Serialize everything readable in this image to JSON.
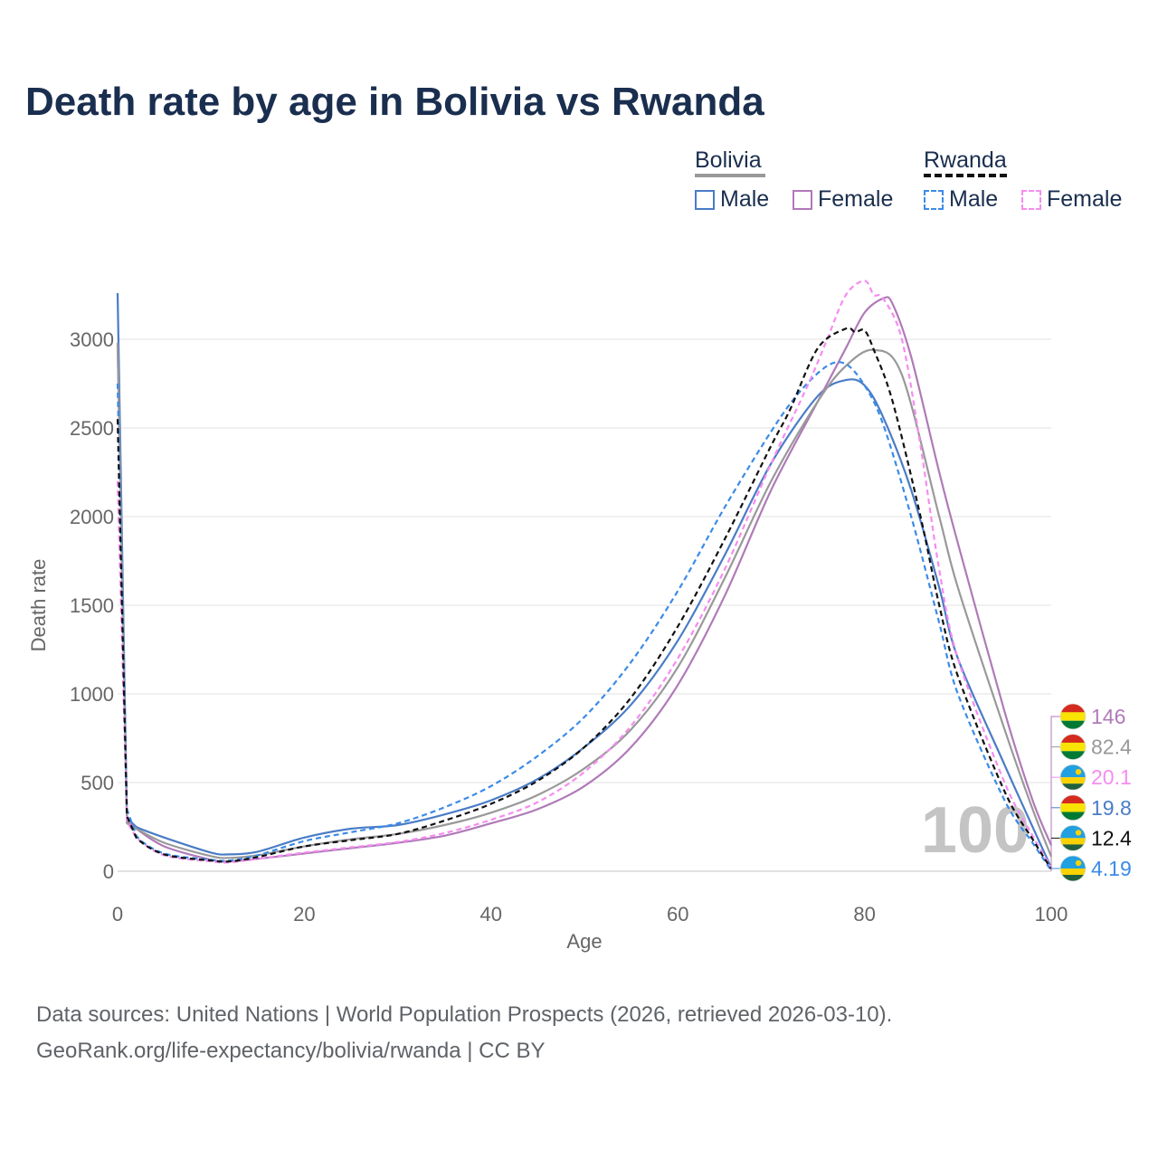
{
  "title": "Death rate by age in Bolivia vs Rwanda",
  "legend": {
    "groups": [
      {
        "name": "Bolivia",
        "line_style": "solid",
        "line_color": "#999999",
        "items": [
          {
            "label": "Male",
            "color": "#4a7cc6",
            "style": "solid"
          },
          {
            "label": "Female",
            "color": "#b07ab8",
            "style": "solid"
          }
        ]
      },
      {
        "name": "Rwanda",
        "line_style": "dashed",
        "line_color": "#111111",
        "items": [
          {
            "label": "Male",
            "color": "#3b8be8",
            "style": "dashed"
          },
          {
            "label": "Female",
            "color": "#f58cf0",
            "style": "dashed"
          }
        ]
      }
    ]
  },
  "footer": {
    "line1": "Data sources: United Nations | World Population Prospects (2026, retrieved 2026-03-10).",
    "line2": "GeoRank.org/life-expectancy/bolivia/rwanda | CC BY"
  },
  "chart_data": {
    "type": "line",
    "xlabel": "Age",
    "ylabel": "Death rate",
    "xlim": [
      0,
      100
    ],
    "ylim": [
      0,
      3000
    ],
    "x_ticks": [
      0,
      20,
      40,
      60,
      80,
      100
    ],
    "y_ticks": [
      0,
      500,
      1000,
      1500,
      2000,
      2500,
      3000
    ],
    "grid": true,
    "watermark": "100",
    "series": [
      {
        "name": "Bolivia Male",
        "color": "#4a7cc6",
        "dash": false,
        "x": [
          0,
          1,
          2,
          5,
          10,
          12,
          15,
          20,
          25,
          30,
          35,
          40,
          45,
          50,
          55,
          60,
          65,
          70,
          75,
          78,
          80,
          82,
          85,
          88,
          90,
          95,
          98,
          100
        ],
        "y": [
          3260,
          300,
          250,
          190,
          105,
          95,
          110,
          190,
          240,
          260,
          320,
          400,
          520,
          700,
          940,
          1300,
          1780,
          2300,
          2680,
          2770,
          2740,
          2560,
          2150,
          1600,
          1200,
          600,
          250,
          19.8
        ]
      },
      {
        "name": "Bolivia Female",
        "color": "#b07ab8",
        "dash": false,
        "x": [
          0,
          1,
          2,
          5,
          10,
          12,
          15,
          20,
          25,
          30,
          35,
          40,
          45,
          50,
          55,
          60,
          65,
          70,
          75,
          78,
          80,
          82,
          83,
          85,
          88,
          90,
          95,
          98,
          100
        ],
        "y": [
          2970,
          280,
          240,
          140,
          65,
          55,
          70,
          100,
          130,
          160,
          200,
          270,
          350,
          480,
          700,
          1050,
          1550,
          2150,
          2650,
          2950,
          3150,
          3230,
          3200,
          2900,
          2250,
          1850,
          900,
          400,
          146
        ]
      },
      {
        "name": "Bolivia Total",
        "color": "#999999",
        "dash": false,
        "x": [
          0,
          1,
          2,
          5,
          10,
          12,
          15,
          20,
          25,
          30,
          35,
          40,
          45,
          50,
          55,
          60,
          65,
          70,
          75,
          78,
          81,
          84,
          88,
          90,
          95,
          98,
          100
        ],
        "y": [
          2980,
          270,
          240,
          160,
          85,
          75,
          90,
          140,
          180,
          210,
          260,
          330,
          430,
          580,
          800,
          1150,
          1650,
          2200,
          2650,
          2850,
          2940,
          2800,
          2000,
          1600,
          800,
          350,
          82.4
        ]
      },
      {
        "name": "Rwanda Male",
        "color": "#3b8be8",
        "dash": true,
        "x": [
          0,
          1,
          2,
          5,
          10,
          12,
          15,
          20,
          25,
          30,
          35,
          40,
          45,
          50,
          55,
          60,
          65,
          70,
          73,
          76,
          78,
          80,
          82,
          85,
          88,
          90,
          95,
          98,
          100
        ],
        "y": [
          2750,
          350,
          200,
          100,
          65,
          60,
          90,
          170,
          220,
          270,
          360,
          480,
          650,
          870,
          1180,
          1580,
          2050,
          2480,
          2700,
          2850,
          2860,
          2740,
          2520,
          2000,
          1400,
          1000,
          400,
          160,
          4.19
        ]
      },
      {
        "name": "Rwanda Female",
        "color": "#f58cf0",
        "dash": true,
        "x": [
          0,
          1,
          2,
          5,
          10,
          12,
          15,
          20,
          25,
          30,
          35,
          40,
          45,
          50,
          55,
          60,
          65,
          70,
          74,
          76,
          78,
          80,
          81,
          82,
          84,
          86,
          88,
          90,
          95,
          98,
          100
        ],
        "y": [
          2200,
          280,
          190,
          90,
          55,
          50,
          70,
          105,
          135,
          165,
          215,
          290,
          390,
          560,
          820,
          1200,
          1700,
          2300,
          2750,
          3000,
          3250,
          3330,
          3250,
          3230,
          3000,
          2400,
          1700,
          1200,
          500,
          200,
          20.1
        ]
      },
      {
        "name": "Rwanda Total",
        "color": "#111111",
        "dash": true,
        "x": [
          0,
          1,
          2,
          5,
          10,
          12,
          15,
          20,
          25,
          30,
          35,
          40,
          45,
          50,
          55,
          60,
          65,
          70,
          72,
          75,
          78,
          79,
          80,
          81,
          83,
          86,
          88,
          90,
          95,
          98,
          100
        ],
        "y": [
          2550,
          310,
          190,
          95,
          60,
          55,
          80,
          140,
          175,
          210,
          285,
          380,
          510,
          700,
          980,
          1380,
          1870,
          2400,
          2600,
          2950,
          3060,
          3040,
          3050,
          2940,
          2650,
          2000,
          1500,
          1100,
          450,
          180,
          12.4
        ]
      }
    ],
    "end_labels": [
      {
        "value": "146",
        "color": "#b07ab8",
        "country": "Bolivia"
      },
      {
        "value": "82.4",
        "color": "#999999",
        "country": "Bolivia"
      },
      {
        "value": "20.1",
        "color": "#f58cf0",
        "country": "Rwanda"
      },
      {
        "value": "19.8",
        "color": "#4a7cc6",
        "country": "Bolivia"
      },
      {
        "value": "12.4",
        "color": "#111111",
        "country": "Rwanda"
      },
      {
        "value": "4.19",
        "color": "#3b8be8",
        "country": "Rwanda"
      }
    ]
  }
}
